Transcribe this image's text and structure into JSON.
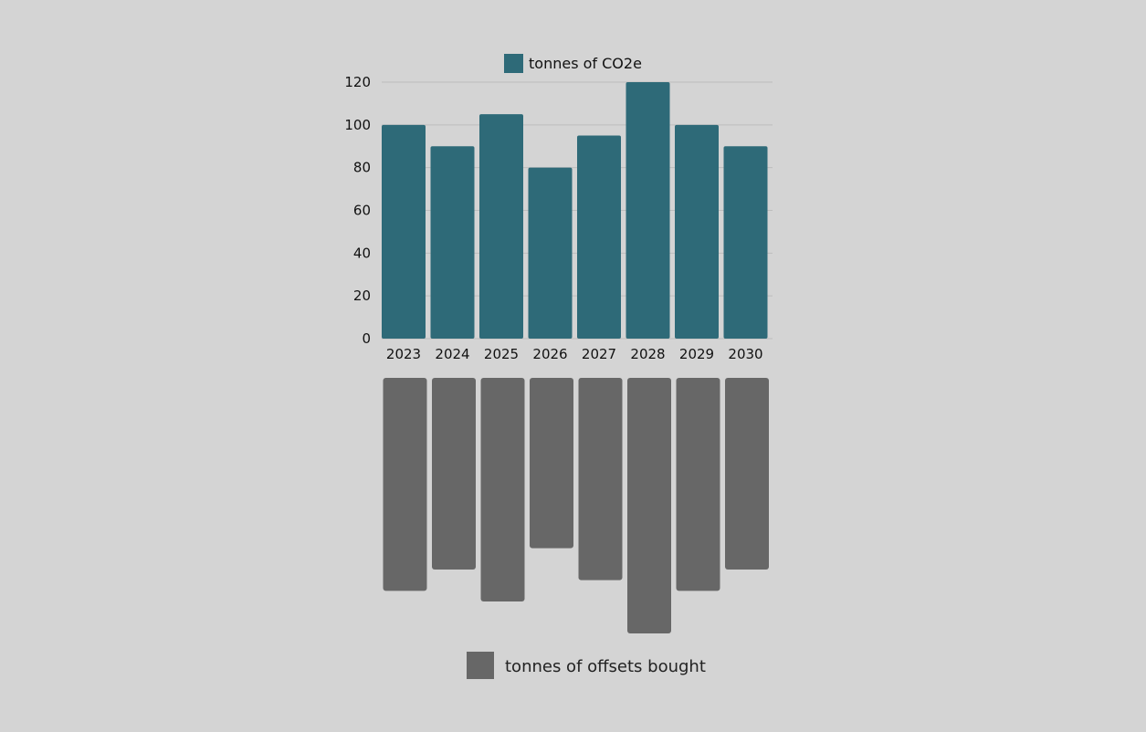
{
  "chart_data": [
    {
      "type": "bar",
      "categories": [
        "2023",
        "2024",
        "2025",
        "2026",
        "2027",
        "2028",
        "2029",
        "2030"
      ],
      "series": [
        {
          "name": "tonnes of CO2e",
          "values": [
            100,
            90,
            105,
            80,
            95,
            120,
            100,
            90
          ]
        }
      ],
      "ylim": [
        0,
        120
      ],
      "yticks": [
        0,
        20,
        40,
        60,
        80,
        100,
        120
      ],
      "grid": true,
      "legend": "top-center",
      "color": "#2e6a78"
    },
    {
      "type": "bar",
      "orientation": "downward",
      "categories": [
        "2023",
        "2024",
        "2025",
        "2026",
        "2027",
        "2028",
        "2029",
        "2030"
      ],
      "series": [
        {
          "name": "tonnes of offsets bought",
          "values": [
            100,
            90,
            105,
            80,
            95,
            120,
            100,
            90
          ]
        }
      ],
      "ylim": [
        0,
        120
      ],
      "grid": false,
      "legend": "bottom-center",
      "color": "#676767"
    }
  ]
}
